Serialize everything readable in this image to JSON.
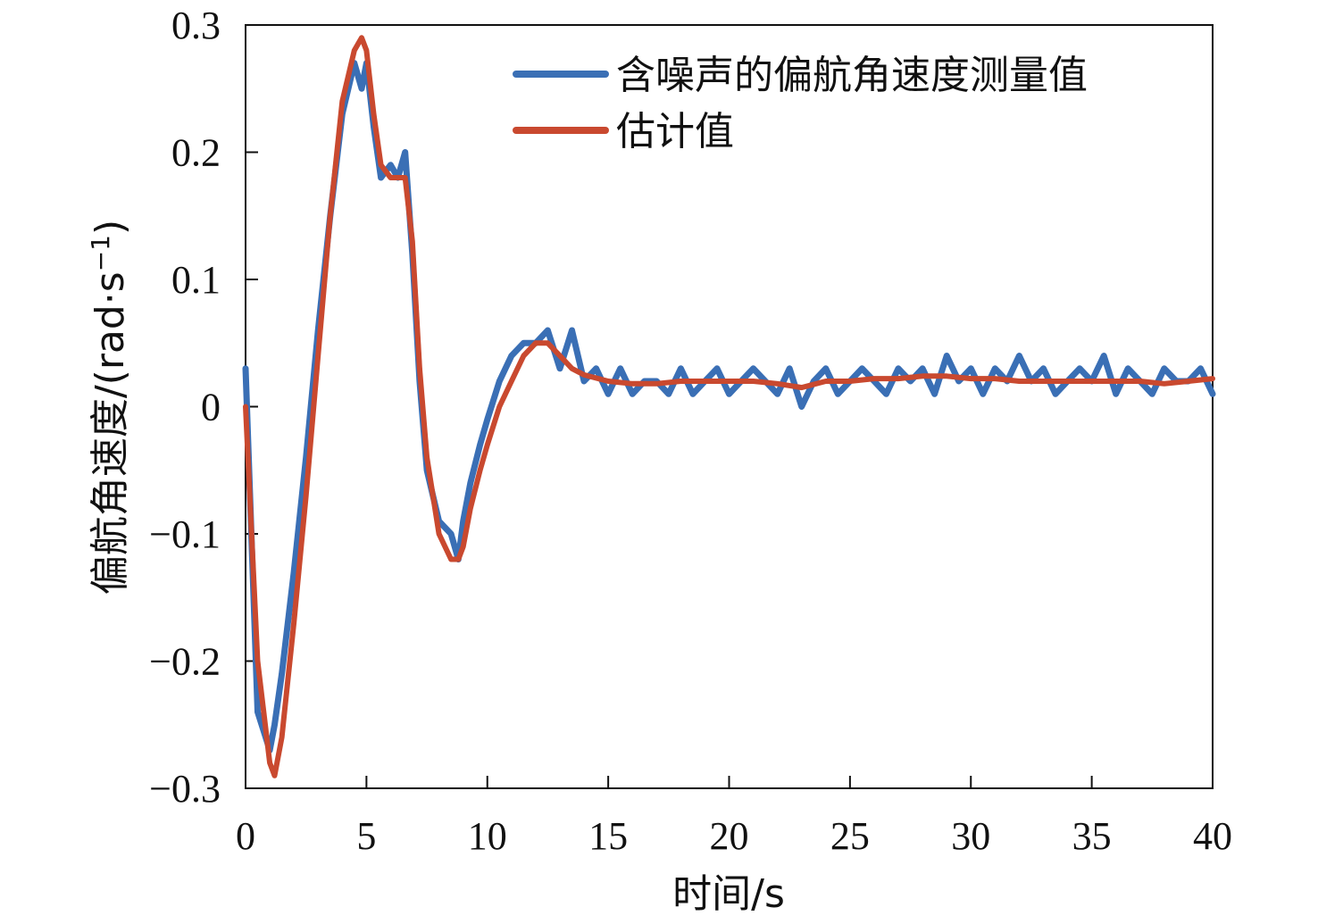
{
  "chart_data": {
    "type": "line",
    "title": "",
    "xlabel": "时间/s",
    "ylabel": "偏航角速度/(rad·s",
    "ylabel_sup": "−1",
    "ylabel_close": ")",
    "xlim": [
      0,
      40
    ],
    "ylim": [
      -0.3,
      0.3
    ],
    "xticks": [
      0,
      5,
      10,
      15,
      20,
      25,
      30,
      35,
      40
    ],
    "yticks": [
      -0.3,
      -0.2,
      -0.1,
      0,
      0.1,
      0.2,
      0.3
    ],
    "ytick_labels": [
      "−0.3",
      "−0.2",
      "−0.1",
      "0",
      "0.1",
      "0.2",
      "0.3"
    ],
    "grid": false,
    "legend_position": "top-right",
    "series": [
      {
        "name": "含噪声的偏航角速度测量值",
        "color": "#3a6fb5",
        "x": [
          0,
          0.5,
          1.0,
          1.2,
          1.5,
          2.0,
          2.5,
          3.0,
          3.5,
          4.0,
          4.5,
          4.8,
          5.0,
          5.3,
          5.6,
          6.0,
          6.3,
          6.6,
          6.9,
          7.2,
          7.5,
          8.0,
          8.5,
          8.8,
          9.0,
          9.3,
          9.7,
          10.0,
          10.5,
          11.0,
          11.5,
          12.0,
          12.5,
          13.0,
          13.5,
          14.0,
          14.5,
          15.0,
          15.5,
          16.0,
          16.5,
          17.0,
          17.5,
          18.0,
          18.5,
          19.0,
          19.5,
          20.0,
          20.5,
          21.0,
          21.5,
          22.0,
          22.5,
          23.0,
          23.5,
          24.0,
          24.5,
          25.0,
          25.5,
          26.0,
          26.5,
          27.0,
          27.5,
          28.0,
          28.5,
          29.0,
          29.5,
          30.0,
          30.5,
          31.0,
          31.5,
          32.0,
          32.5,
          33.0,
          33.5,
          34.0,
          34.5,
          35.0,
          35.5,
          36.0,
          36.5,
          37.0,
          37.5,
          38.0,
          38.5,
          39.0,
          39.5,
          40.0
        ],
        "values": [
          0.03,
          -0.24,
          -0.27,
          -0.25,
          -0.21,
          -0.13,
          -0.04,
          0.06,
          0.15,
          0.23,
          0.27,
          0.25,
          0.27,
          0.22,
          0.18,
          0.19,
          0.18,
          0.2,
          0.12,
          0.02,
          -0.05,
          -0.09,
          -0.1,
          -0.12,
          -0.09,
          -0.06,
          -0.03,
          -0.01,
          0.02,
          0.04,
          0.05,
          0.05,
          0.06,
          0.03,
          0.06,
          0.02,
          0.03,
          0.01,
          0.03,
          0.01,
          0.02,
          0.02,
          0.01,
          0.03,
          0.01,
          0.02,
          0.03,
          0.01,
          0.02,
          0.03,
          0.02,
          0.01,
          0.03,
          0.0,
          0.02,
          0.03,
          0.01,
          0.02,
          0.03,
          0.02,
          0.01,
          0.03,
          0.02,
          0.03,
          0.01,
          0.04,
          0.02,
          0.03,
          0.01,
          0.03,
          0.02,
          0.04,
          0.02,
          0.03,
          0.01,
          0.02,
          0.03,
          0.02,
          0.04,
          0.01,
          0.03,
          0.02,
          0.01,
          0.03,
          0.02,
          0.02,
          0.03,
          0.01
        ]
      },
      {
        "name": "估计值",
        "color": "#c9492f",
        "x": [
          0,
          0.5,
          1.0,
          1.2,
          1.5,
          2.0,
          2.5,
          3.0,
          3.5,
          4.0,
          4.5,
          4.8,
          5.0,
          5.3,
          5.6,
          6.0,
          6.3,
          6.6,
          6.9,
          7.2,
          7.5,
          8.0,
          8.5,
          8.8,
          9.0,
          9.3,
          9.7,
          10.0,
          10.5,
          11.0,
          11.5,
          12.0,
          12.5,
          13.0,
          13.5,
          14.0,
          15.0,
          16.0,
          17.0,
          18.0,
          19.0,
          20.0,
          21.0,
          22.0,
          23.0,
          24.0,
          25.0,
          26.0,
          27.0,
          28.0,
          29.0,
          30.0,
          31.0,
          32.0,
          33.0,
          34.0,
          35.0,
          36.0,
          37.0,
          38.0,
          39.0,
          40.0
        ],
        "values": [
          0.0,
          -0.2,
          -0.28,
          -0.29,
          -0.26,
          -0.17,
          -0.07,
          0.04,
          0.15,
          0.24,
          0.28,
          0.29,
          0.28,
          0.23,
          0.19,
          0.18,
          0.18,
          0.18,
          0.13,
          0.03,
          -0.04,
          -0.1,
          -0.12,
          -0.12,
          -0.11,
          -0.08,
          -0.05,
          -0.03,
          0.0,
          0.02,
          0.04,
          0.05,
          0.05,
          0.04,
          0.03,
          0.025,
          0.02,
          0.018,
          0.018,
          0.02,
          0.02,
          0.02,
          0.02,
          0.018,
          0.015,
          0.02,
          0.02,
          0.022,
          0.022,
          0.024,
          0.024,
          0.022,
          0.022,
          0.02,
          0.02,
          0.02,
          0.02,
          0.02,
          0.02,
          0.018,
          0.02,
          0.022
        ]
      }
    ]
  }
}
